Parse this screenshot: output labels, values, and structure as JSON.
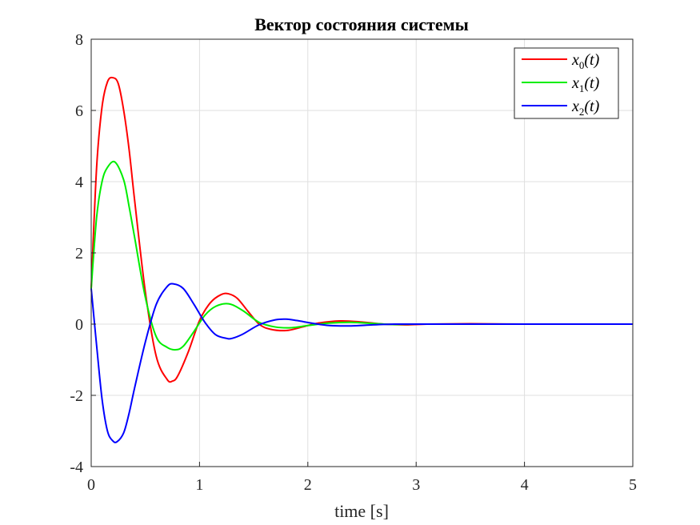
{
  "chart_data": {
    "type": "line",
    "title": "Вектор состояния системы",
    "xlabel": "time [s]",
    "ylabel": "",
    "xlim": [
      0,
      5
    ],
    "ylim": [
      -4,
      8
    ],
    "xticks": [
      "0",
      "1",
      "2",
      "3",
      "4",
      "5"
    ],
    "yticks": [
      "-4",
      "-2",
      "0",
      "2",
      "4",
      "6",
      "8"
    ],
    "grid": true,
    "legend_position": "top-right",
    "series": [
      {
        "name": "x0(t)",
        "label_base": "x",
        "label_sub": "0",
        "label_arg": "(t)",
        "color": "#ff0000",
        "x": [
          0,
          0.05,
          0.1,
          0.15,
          0.2,
          0.25,
          0.3,
          0.35,
          0.4,
          0.5,
          0.6,
          0.7,
          0.75,
          0.8,
          0.9,
          1.0,
          1.1,
          1.2,
          1.27,
          1.35,
          1.45,
          1.55,
          1.65,
          1.8,
          1.95,
          2.1,
          2.3,
          2.5,
          2.7,
          2.9,
          3.1,
          3.5,
          4.0,
          4.5,
          5.0
        ],
        "y": [
          1.0,
          4.4,
          6.1,
          6.8,
          6.92,
          6.75,
          6.0,
          4.9,
          3.5,
          0.9,
          -0.9,
          -1.55,
          -1.6,
          -1.45,
          -0.75,
          0.1,
          0.6,
          0.83,
          0.85,
          0.72,
          0.35,
          0.0,
          -0.14,
          -0.18,
          -0.08,
          0.03,
          0.09,
          0.06,
          0.0,
          -0.02,
          0.0,
          0.01,
          0.0,
          0.0,
          0.0
        ]
      },
      {
        "name": "x1(t)",
        "label_base": "x",
        "label_sub": "1",
        "label_arg": "(t)",
        "color": "#00ee00",
        "x": [
          0,
          0.05,
          0.1,
          0.15,
          0.22,
          0.3,
          0.35,
          0.4,
          0.5,
          0.6,
          0.7,
          0.78,
          0.85,
          0.95,
          1.05,
          1.15,
          1.27,
          1.4,
          1.55,
          1.7,
          1.85,
          2.0,
          2.2,
          2.4,
          2.6,
          2.8,
          3.0,
          3.5,
          4.0,
          5.0
        ],
        "y": [
          1.0,
          3.0,
          4.0,
          4.4,
          4.55,
          4.05,
          3.3,
          2.45,
          0.75,
          -0.35,
          -0.65,
          -0.72,
          -0.62,
          -0.2,
          0.25,
          0.5,
          0.57,
          0.38,
          0.05,
          -0.08,
          -0.1,
          -0.04,
          0.03,
          0.05,
          0.02,
          -0.01,
          0.0,
          0.0,
          0.0,
          0.0
        ]
      },
      {
        "name": "x2(t)",
        "label_base": "x",
        "label_sub": "2",
        "label_arg": "(t)",
        "color": "#0000ff",
        "x": [
          0,
          0.05,
          0.1,
          0.15,
          0.2,
          0.24,
          0.3,
          0.35,
          0.4,
          0.5,
          0.6,
          0.7,
          0.76,
          0.85,
          0.95,
          1.05,
          1.15,
          1.25,
          1.3,
          1.4,
          1.55,
          1.7,
          1.8,
          1.9,
          2.05,
          2.2,
          2.4,
          2.6,
          2.8,
          3.0,
          3.5,
          4.0,
          5.0
        ],
        "y": [
          1.0,
          -0.6,
          -2.1,
          -3.0,
          -3.28,
          -3.3,
          -3.05,
          -2.5,
          -1.8,
          -0.5,
          0.55,
          1.05,
          1.13,
          1.0,
          0.55,
          0.05,
          -0.3,
          -0.4,
          -0.4,
          -0.28,
          -0.02,
          0.12,
          0.14,
          0.1,
          0.02,
          -0.04,
          -0.05,
          -0.02,
          0.0,
          0.0,
          0.0,
          0.0,
          0.0
        ]
      }
    ]
  }
}
